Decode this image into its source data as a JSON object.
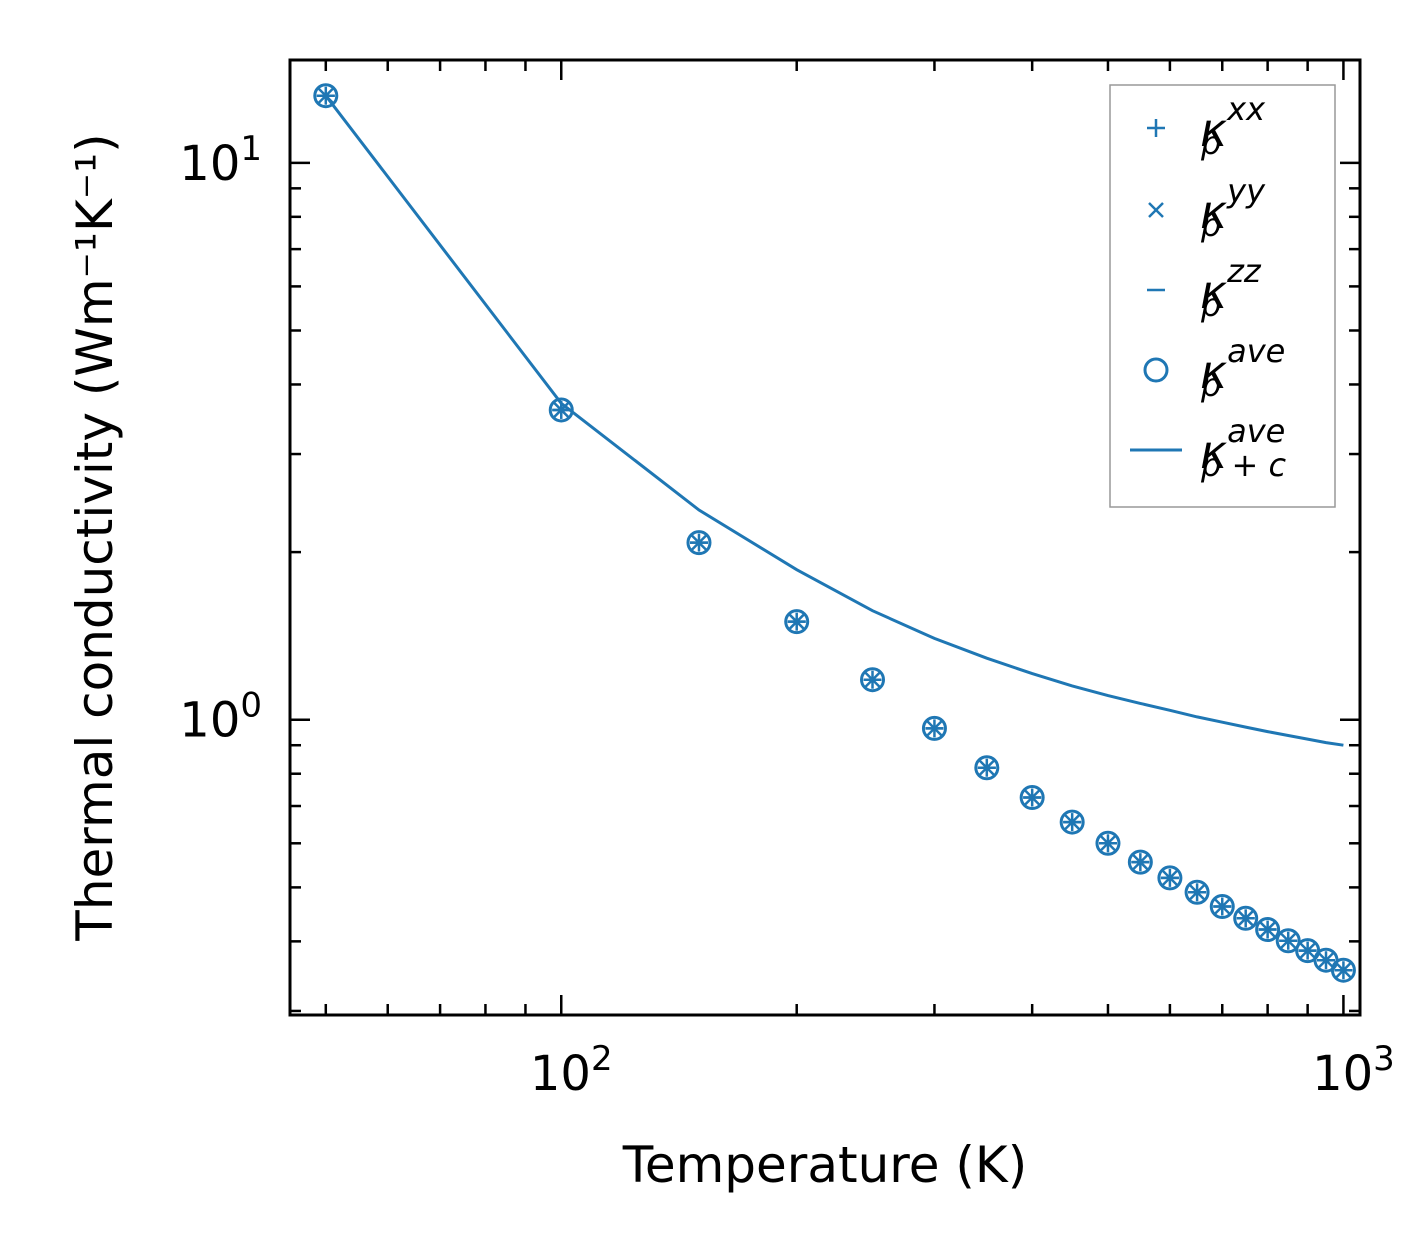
{
  "chart_data": {
    "type": "scatter",
    "xscale": "log",
    "yscale": "log",
    "xlim": [
      45,
      1050
    ],
    "ylim": [
      0.295,
      15.3
    ],
    "xlabel": "Temperature (K)",
    "ylabel": "Thermal conductivity (Wm⁻¹K⁻¹)",
    "x_ticks": [
      {
        "value": 100,
        "base": "10",
        "exp": "2"
      },
      {
        "value": 1000,
        "base": "10",
        "exp": "3"
      }
    ],
    "y_ticks": [
      {
        "value": 1,
        "base": "10",
        "exp": "0"
      },
      {
        "value": 10,
        "base": "10",
        "exp": "1"
      }
    ],
    "x": [
      50,
      100,
      150,
      200,
      250,
      300,
      350,
      400,
      450,
      500,
      550,
      600,
      650,
      700,
      750,
      800,
      850,
      900,
      950,
      1000
    ],
    "series": [
      {
        "name": "kappa_p_xx",
        "marker": "plus",
        "values": [
          13.2,
          3.6,
          2.08,
          1.5,
          1.18,
          0.965,
          0.82,
          0.725,
          0.655,
          0.6,
          0.555,
          0.52,
          0.49,
          0.462,
          0.44,
          0.42,
          0.401,
          0.385,
          0.37,
          0.355
        ]
      },
      {
        "name": "kappa_p_yy",
        "marker": "x",
        "values": [
          13.2,
          3.6,
          2.08,
          1.5,
          1.18,
          0.965,
          0.82,
          0.725,
          0.655,
          0.6,
          0.555,
          0.52,
          0.49,
          0.462,
          0.44,
          0.42,
          0.401,
          0.385,
          0.37,
          0.355
        ]
      },
      {
        "name": "kappa_p_zz",
        "marker": "hline",
        "values": [
          13.2,
          3.6,
          2.08,
          1.5,
          1.18,
          0.965,
          0.82,
          0.725,
          0.655,
          0.6,
          0.555,
          0.52,
          0.49,
          0.462,
          0.44,
          0.42,
          0.401,
          0.385,
          0.37,
          0.355
        ]
      },
      {
        "name": "kappa_p_ave",
        "marker": "circle",
        "values": [
          13.2,
          3.6,
          2.08,
          1.5,
          1.18,
          0.965,
          0.82,
          0.725,
          0.655,
          0.6,
          0.555,
          0.52,
          0.49,
          0.462,
          0.44,
          0.42,
          0.401,
          0.385,
          0.37,
          0.355
        ]
      },
      {
        "name": "kappa_p+c_ave",
        "marker": "line",
        "values": [
          13.2,
          3.7,
          2.38,
          1.86,
          1.57,
          1.4,
          1.29,
          1.21,
          1.15,
          1.105,
          1.07,
          1.04,
          1.012,
          0.99,
          0.97,
          0.952,
          0.937,
          0.923,
          0.91,
          0.9
        ]
      }
    ],
    "legend": {
      "position": "top-right",
      "entries": [
        {
          "marker": "plus",
          "base": "κ",
          "sup": "xx",
          "sub": "p"
        },
        {
          "marker": "x",
          "base": "κ",
          "sup": "yy",
          "sub": "p"
        },
        {
          "marker": "hline",
          "base": "κ",
          "sup": "zz",
          "sub": "p"
        },
        {
          "marker": "circle",
          "base": "κ",
          "sup": "ave",
          "sub": "p"
        },
        {
          "marker": "line",
          "base": "κ",
          "sup": "ave",
          "sub": "p + c"
        }
      ]
    },
    "color": "#1f77b4"
  }
}
